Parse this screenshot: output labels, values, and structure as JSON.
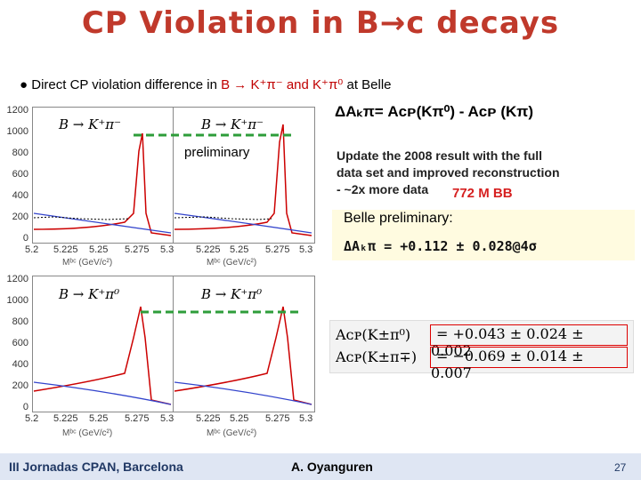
{
  "title": "CP Violation in B→c decays",
  "bullet": {
    "prefix": "Direct CP violation difference in",
    "modes": "B → K⁺π⁻ and K⁺π⁰",
    "suffix": "at Belle"
  },
  "delta_def": "ΔAₖπ= Aᴄᴘ(Kπ⁰) - Aᴄᴘ (Kπ)",
  "update": {
    "line1": "Update the 2008 result with the full",
    "line2": "data set and improved reconstruction",
    "line3": "- ~2x more data",
    "lumi": "772 M BB"
  },
  "belle_preliminary_label": "Belle preliminary:",
  "delta_result": "ΔAₖπ = +0.112 ± 0.028@4σ",
  "results": [
    {
      "lhs": "Aᴄᴘ(K±π⁰)",
      "rhs": "= +0.043 ± 0.024 ± 0.002"
    },
    {
      "lhs": "Aᴄᴘ(K±π∓)",
      "rhs": "= −0.069 ± 0.014 ± 0.007"
    }
  ],
  "preliminary_tag": "preliminary",
  "plots": {
    "top_label": "B → K⁺π⁻",
    "bottom_label": "B → K⁺π⁰",
    "y_ticks": [
      "1200",
      "1000",
      "800",
      "600",
      "400",
      "200",
      "0"
    ],
    "x_ticks": [
      "5.2",
      "5.225",
      "5.25",
      "5.275",
      "5.3"
    ],
    "x_axis_label": "Mᵇᶜ (GeV/c²)"
  },
  "colors": {
    "title": "#c0392b",
    "accent_red": "#d62020",
    "dash_green": "#2e9d3a",
    "footer_bg": "#dfe6f3"
  },
  "footer": {
    "left": "III Jornadas CPAN, Barcelona",
    "center": "A. Oyanguren",
    "page": "27"
  }
}
